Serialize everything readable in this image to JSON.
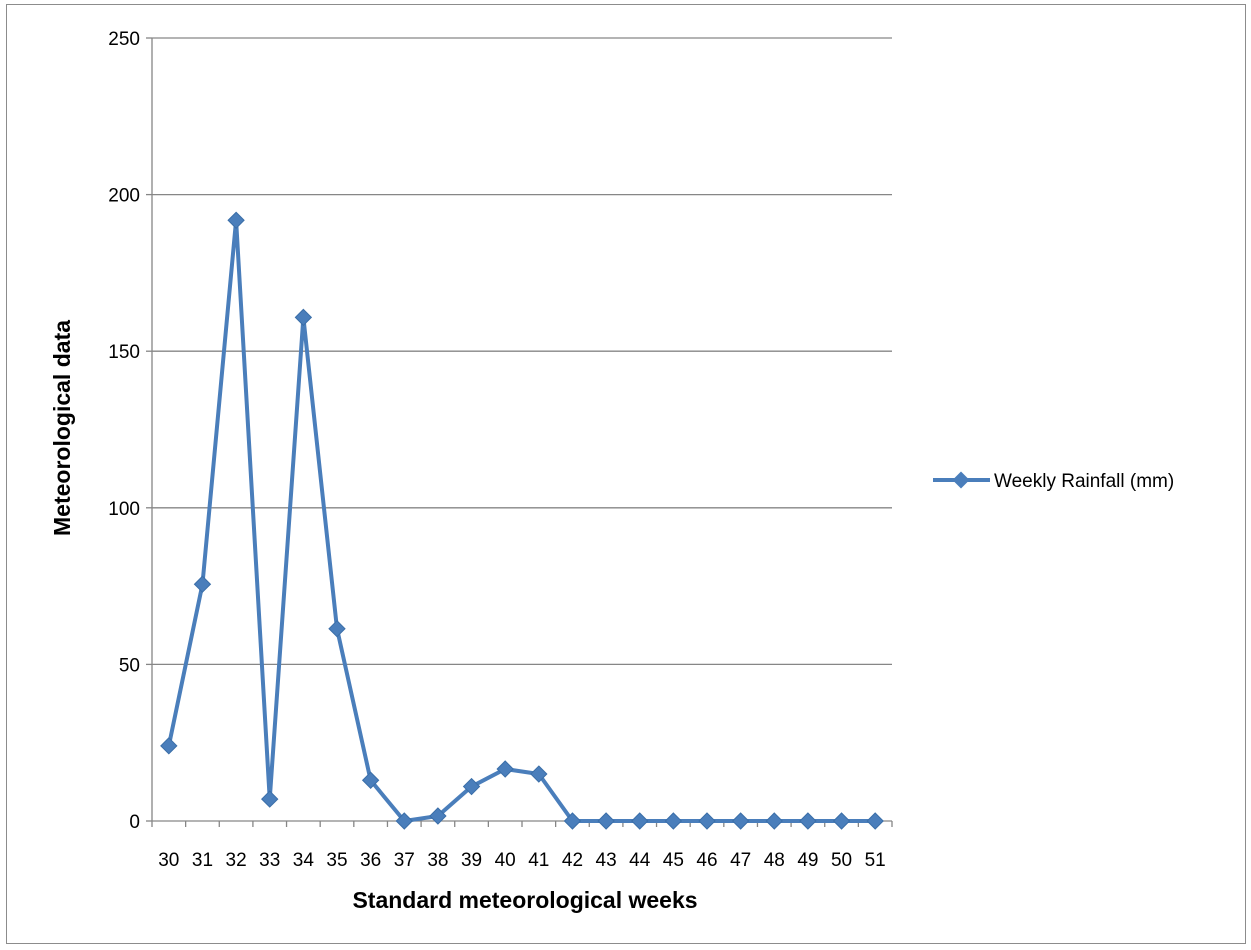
{
  "chart_data": {
    "type": "line",
    "title": "",
    "xlabel": "Standard meteorological weeks",
    "ylabel": "Meteorological data",
    "x": [
      "30",
      "31",
      "32",
      "33",
      "34",
      "35",
      "36",
      "37",
      "38",
      "39",
      "40",
      "41",
      "42",
      "43",
      "44",
      "45",
      "46",
      "47",
      "48",
      "49",
      "50",
      "51"
    ],
    "series": [
      {
        "name": "Weekly Rainfall (mm)",
        "values": [
          24,
          75.6,
          191.8,
          7,
          160.8,
          61.4,
          13,
          0,
          1.6,
          11,
          16.6,
          15,
          0,
          0,
          0,
          0,
          0,
          0,
          0,
          0,
          0,
          0
        ],
        "color": "#4a7ebb"
      }
    ],
    "ylim": [
      0,
      250
    ],
    "yticks": [
      0,
      50,
      100,
      150,
      200,
      250
    ],
    "grid": true,
    "legend_position": "right"
  }
}
